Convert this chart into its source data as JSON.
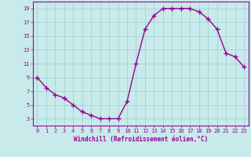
{
  "x": [
    0,
    1,
    2,
    3,
    4,
    5,
    6,
    7,
    8,
    9,
    10,
    11,
    12,
    13,
    14,
    15,
    16,
    17,
    18,
    19,
    20,
    21,
    22,
    23
  ],
  "y": [
    9,
    7.5,
    6.5,
    6,
    5,
    4,
    3.5,
    3,
    3,
    3,
    5.5,
    11,
    16,
    18,
    19,
    19,
    19,
    19,
    18.5,
    17.5,
    16,
    12.5,
    12,
    10.5
  ],
  "line_color": "#990099",
  "marker": "+",
  "marker_size": 4,
  "marker_lw": 1.0,
  "bg_color": "#c8eaea",
  "grid_color": "#9fcece",
  "xlabel": "Windchill (Refroidissement éolien,°C)",
  "xlim": [
    -0.5,
    23.5
  ],
  "ylim": [
    2,
    20
  ],
  "yticks": [
    3,
    5,
    7,
    9,
    11,
    13,
    15,
    17,
    19
  ],
  "xticks": [
    0,
    1,
    2,
    3,
    4,
    5,
    6,
    7,
    8,
    9,
    10,
    11,
    12,
    13,
    14,
    15,
    16,
    17,
    18,
    19,
    20,
    21,
    22,
    23
  ],
  "tick_fontsize": 5.0,
  "xlabel_fontsize": 5.5,
  "line_width": 1.0
}
